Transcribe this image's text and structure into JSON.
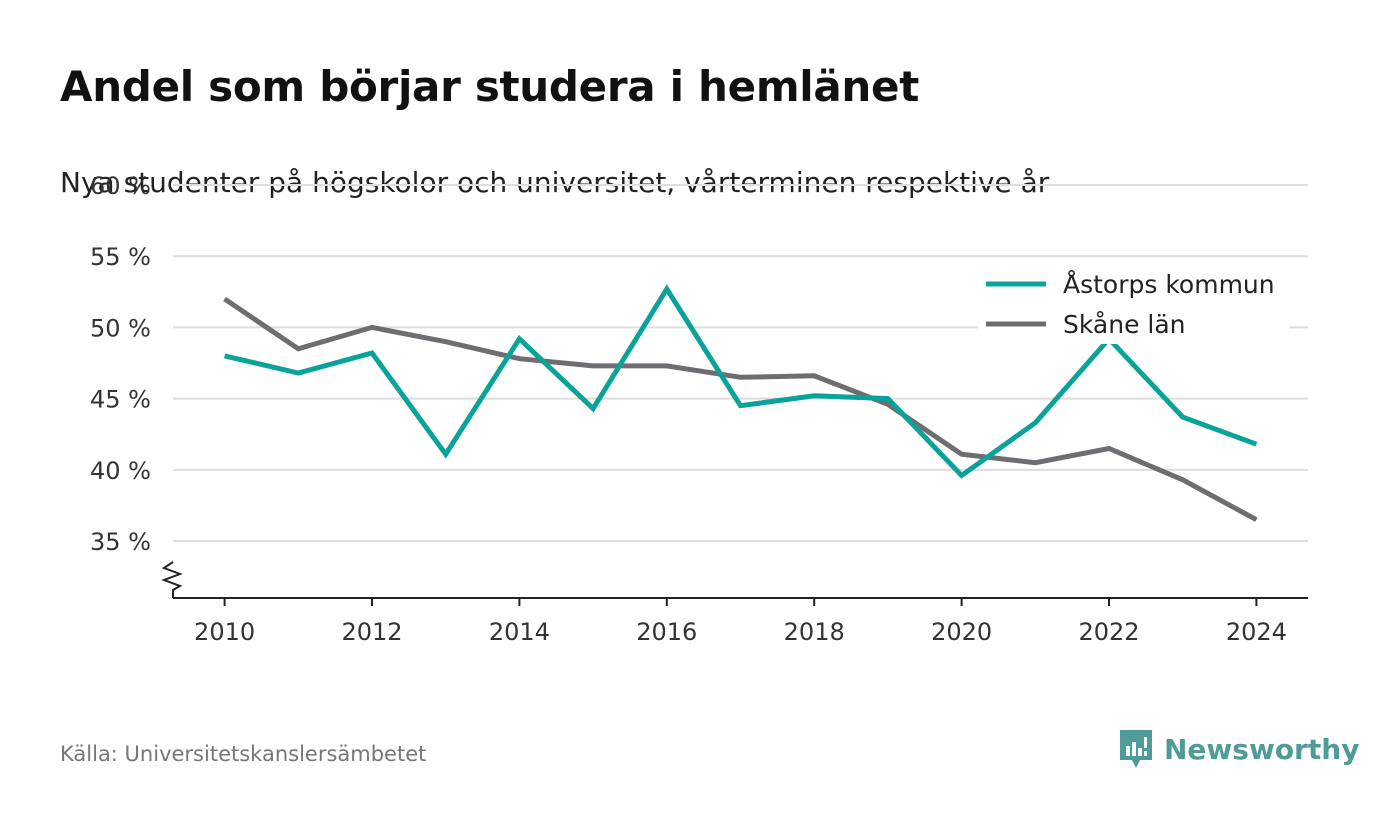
{
  "title": "Andel som börjar studera i hemlänet",
  "subtitle": "Nya studenter på högskolor och universitet, vårterminen respektive år",
  "source": "Källa: Universitetskanslersämbetet",
  "brand": "Newsworthy",
  "colors": {
    "series_1": "#0aa39a",
    "series_2": "#6e6e72",
    "grid": "#dddddd",
    "axis": "#222222",
    "brand": "#4f9b98"
  },
  "chart_data": {
    "type": "line",
    "x": [
      2010,
      2011,
      2012,
      2013,
      2014,
      2015,
      2016,
      2017,
      2018,
      2019,
      2020,
      2021,
      2022,
      2023,
      2024
    ],
    "x_tick_labels": [
      "2010",
      "2012",
      "2014",
      "2016",
      "2018",
      "2020",
      "2022",
      "2024"
    ],
    "y_tick_labels": [
      "35 %",
      "40 %",
      "45 %",
      "50 %",
      "55 %",
      "60 %"
    ],
    "y_ticks": [
      35,
      40,
      45,
      50,
      55,
      60
    ],
    "ylim": [
      31,
      60
    ],
    "xlim": [
      2009.3,
      2024.7
    ],
    "axis_break": true,
    "grid": true,
    "legend_position": "top-right",
    "series": [
      {
        "name": "Åstorps kommun",
        "values": [
          48.0,
          46.8,
          48.2,
          41.1,
          49.2,
          44.3,
          52.7,
          44.5,
          45.2,
          45.0,
          39.6,
          43.3,
          49.2,
          43.7,
          41.8
        ]
      },
      {
        "name": "Skåne län",
        "values": [
          52.0,
          48.5,
          50.0,
          49.0,
          47.8,
          47.3,
          47.3,
          46.5,
          46.6,
          44.6,
          41.1,
          40.5,
          41.5,
          39.3,
          36.5
        ]
      }
    ]
  }
}
